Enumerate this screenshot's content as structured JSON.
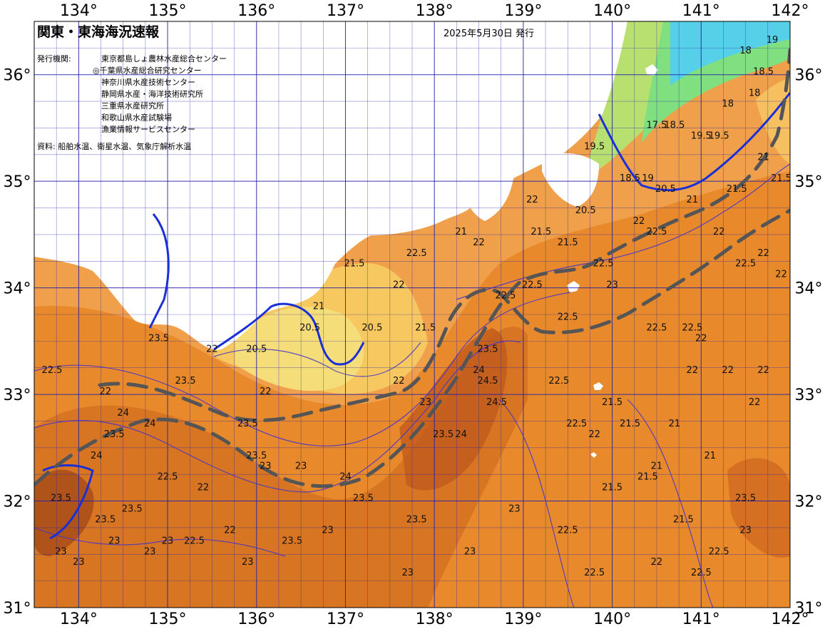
{
  "title": "関東・東海海況速報",
  "issued": "2025年5月30日 発行",
  "agencies_label": "発行機関:",
  "agencies": [
    "東京都島しょ農林水産総合センター",
    "◎千葉県水産総合研究センター",
    "神奈川県水産技術センター",
    "静岡県水産・海洋技術研究所",
    "三重県水産研究所",
    "和歌山県水産試験場",
    "漁業情報サービスセンター"
  ],
  "source": "資料: 船舶水温、衛星水温、気象庁解析水温",
  "lon_ticks": [
    {
      "lon": 134,
      "label": "134°"
    },
    {
      "lon": 135,
      "label": "135°"
    },
    {
      "lon": 136,
      "label": "136°"
    },
    {
      "lon": 137,
      "label": "137°"
    },
    {
      "lon": 138,
      "label": "138°"
    },
    {
      "lon": 139,
      "label": "139°"
    },
    {
      "lon": 140,
      "label": "140°"
    },
    {
      "lon": 141,
      "label": "141°"
    },
    {
      "lon": 142,
      "label": "142°"
    }
  ],
  "lat_ticks": [
    {
      "lat": 31,
      "label": "31°"
    },
    {
      "lat": 32,
      "label": "32°"
    },
    {
      "lat": 33,
      "label": "33°"
    },
    {
      "lat": 34,
      "label": "34°"
    },
    {
      "lat": 35,
      "label": "35°"
    },
    {
      "lat": 36,
      "label": "36°"
    }
  ],
  "extent": {
    "lon_min": 133.5,
    "lon_max": 142,
    "lat_min": 31,
    "lat_max": 36.5
  },
  "colors": {
    "land": "#ffffff",
    "sea_warm": "#e8892c",
    "sea_hot": "#c55f1a",
    "sea_mid": "#f4a640",
    "sea_cool": "#f9d36e",
    "sea_cold": "#a8e06a",
    "sea_colder": "#5fe0c8",
    "sea_coldest": "#3fc8f0",
    "grid": "#2222aa",
    "isotherm": "#4433cc",
    "front": "#555555"
  },
  "isotherm_labels": [
    {
      "lon": 133.7,
      "lat": 33.2,
      "label": "22.5"
    },
    {
      "lon": 134.3,
      "lat": 33.0,
      "label": "22"
    },
    {
      "lon": 134.4,
      "lat": 32.6,
      "label": "23.5"
    },
    {
      "lon": 134.5,
      "lat": 32.8,
      "label": "24"
    },
    {
      "lon": 134.8,
      "lat": 32.7,
      "label": "24"
    },
    {
      "lon": 134.2,
      "lat": 32.4,
      "label": "24"
    },
    {
      "lon": 134.9,
      "lat": 33.5,
      "label": "23.5"
    },
    {
      "lon": 135.2,
      "lat": 33.1,
      "label": "23.5"
    },
    {
      "lon": 135.5,
      "lat": 33.4,
      "label": "22"
    },
    {
      "lon": 135.9,
      "lat": 32.7,
      "label": "23.5"
    },
    {
      "lon": 136.0,
      "lat": 32.4,
      "label": "23.5"
    },
    {
      "lon": 136.1,
      "lat": 32.3,
      "label": "23"
    },
    {
      "lon": 136.1,
      "lat": 33.0,
      "label": "22"
    },
    {
      "lon": 136.0,
      "lat": 33.4,
      "label": "20.5"
    },
    {
      "lon": 136.6,
      "lat": 33.6,
      "label": "20.5"
    },
    {
      "lon": 136.7,
      "lat": 33.8,
      "label": "21"
    },
    {
      "lon": 137.1,
      "lat": 34.2,
      "label": "21.5"
    },
    {
      "lon": 137.3,
      "lat": 33.6,
      "label": "20.5"
    },
    {
      "lon": 137.6,
      "lat": 33.1,
      "label": "22"
    },
    {
      "lon": 137.6,
      "lat": 34.0,
      "label": "22"
    },
    {
      "lon": 137.8,
      "lat": 34.3,
      "label": "22.5"
    },
    {
      "lon": 137.9,
      "lat": 33.6,
      "label": "21.5"
    },
    {
      "lon": 137.9,
      "lat": 32.9,
      "label": "23"
    },
    {
      "lon": 138.1,
      "lat": 32.6,
      "label": "23.5"
    },
    {
      "lon": 138.3,
      "lat": 32.6,
      "label": "24"
    },
    {
      "lon": 138.5,
      "lat": 33.2,
      "label": "24"
    },
    {
      "lon": 138.6,
      "lat": 33.4,
      "label": "23.5"
    },
    {
      "lon": 138.6,
      "lat": 33.1,
      "label": "24.5"
    },
    {
      "lon": 138.5,
      "lat": 34.4,
      "label": "22"
    },
    {
      "lon": 138.7,
      "lat": 32.9,
      "label": "24.5"
    },
    {
      "lon": 138.8,
      "lat": 33.9,
      "label": "22.5"
    },
    {
      "lon": 138.3,
      "lat": 34.5,
      "label": "21"
    },
    {
      "lon": 137.0,
      "lat": 32.2,
      "label": "24"
    },
    {
      "lon": 137.2,
      "lat": 32.0,
      "label": "23.5"
    },
    {
      "lon": 136.8,
      "lat": 31.7,
      "label": "23"
    },
    {
      "lon": 136.4,
      "lat": 31.6,
      "label": "23.5"
    },
    {
      "lon": 136.5,
      "lat": 32.3,
      "label": "23"
    },
    {
      "lon": 137.8,
      "lat": 31.8,
      "label": "23.5"
    },
    {
      "lon": 137.7,
      "lat": 31.3,
      "label": "23"
    },
    {
      "lon": 138.4,
      "lat": 31.5,
      "label": "23"
    },
    {
      "lon": 138.9,
      "lat": 31.9,
      "label": "23"
    },
    {
      "lon": 139.1,
      "lat": 34.8,
      "label": "22"
    },
    {
      "lon": 139.2,
      "lat": 34.5,
      "label": "21.5"
    },
    {
      "lon": 139.1,
      "lat": 34.0,
      "label": "22.5"
    },
    {
      "lon": 139.5,
      "lat": 33.7,
      "label": "22.5"
    },
    {
      "lon": 139.5,
      "lat": 34.4,
      "label": "21.5"
    },
    {
      "lon": 139.7,
      "lat": 34.7,
      "label": "20.5"
    },
    {
      "lon": 139.9,
      "lat": 34.2,
      "label": "22.5"
    },
    {
      "lon": 140.0,
      "lat": 34.0,
      "label": "23"
    },
    {
      "lon": 139.4,
      "lat": 33.1,
      "label": "22.5"
    },
    {
      "lon": 139.6,
      "lat": 32.7,
      "label": "22.5"
    },
    {
      "lon": 139.8,
      "lat": 32.6,
      "label": "22"
    },
    {
      "lon": 140.0,
      "lat": 32.9,
      "label": "21.5"
    },
    {
      "lon": 140.2,
      "lat": 32.7,
      "label": "21.5"
    },
    {
      "lon": 140.5,
      "lat": 32.3,
      "label": "21"
    },
    {
      "lon": 140.5,
      "lat": 33.6,
      "label": "22.5"
    },
    {
      "lon": 140.9,
      "lat": 33.6,
      "label": "22.5"
    },
    {
      "lon": 141.0,
      "lat": 33.5,
      "label": "22"
    },
    {
      "lon": 140.9,
      "lat": 33.2,
      "label": "22"
    },
    {
      "lon": 141.3,
      "lat": 33.2,
      "label": "22"
    },
    {
      "lon": 141.2,
      "lat": 34.5,
      "label": "22"
    },
    {
      "lon": 141.5,
      "lat": 34.2,
      "label": "22.5"
    },
    {
      "lon": 141.7,
      "lat": 34.3,
      "label": "22"
    },
    {
      "lon": 141.9,
      "lat": 34.1,
      "label": "22"
    },
    {
      "lon": 140.3,
      "lat": 34.6,
      "label": "22"
    },
    {
      "lon": 140.5,
      "lat": 34.5,
      "label": "22.5"
    },
    {
      "lon": 140.9,
      "lat": 34.8,
      "label": "21"
    },
    {
      "lon": 141.4,
      "lat": 34.9,
      "label": "21.5"
    },
    {
      "lon": 141.7,
      "lat": 33.2,
      "label": "22"
    },
    {
      "lon": 141.6,
      "lat": 32.9,
      "label": "22"
    },
    {
      "lon": 141.1,
      "lat": 32.4,
      "label": "21"
    },
    {
      "lon": 140.7,
      "lat": 32.7,
      "label": "21"
    },
    {
      "lon": 140.4,
      "lat": 32.2,
      "label": "21.5"
    },
    {
      "lon": 140.0,
      "lat": 32.1,
      "label": "21.5"
    },
    {
      "lon": 141.5,
      "lat": 32.0,
      "label": "23.5"
    },
    {
      "lon": 141.5,
      "lat": 31.7,
      "label": "23"
    },
    {
      "lon": 141.0,
      "lat": 31.3,
      "label": "22.5"
    },
    {
      "lon": 141.2,
      "lat": 31.5,
      "label": "22.5"
    },
    {
      "lon": 140.5,
      "lat": 31.4,
      "label": "22"
    },
    {
      "lon": 140.8,
      "lat": 31.8,
      "label": "21.5"
    },
    {
      "lon": 139.5,
      "lat": 31.7,
      "label": "22.5"
    },
    {
      "lon": 139.8,
      "lat": 31.3,
      "label": "22.5"
    },
    {
      "lon": 134.3,
      "lat": 31.8,
      "label": "23.5"
    },
    {
      "lon": 134.6,
      "lat": 31.9,
      "label": "23.5"
    },
    {
      "lon": 134.4,
      "lat": 31.6,
      "label": "23"
    },
    {
      "lon": 134.8,
      "lat": 31.5,
      "label": "23"
    },
    {
      "lon": 135.0,
      "lat": 31.6,
      "label": "23"
    },
    {
      "lon": 135.3,
      "lat": 31.6,
      "label": "22.5"
    },
    {
      "lon": 135.0,
      "lat": 32.2,
      "label": "22.5"
    },
    {
      "lon": 135.4,
      "lat": 32.1,
      "label": "22"
    },
    {
      "lon": 135.7,
      "lat": 31.7,
      "label": "22"
    },
    {
      "lon": 135.9,
      "lat": 31.4,
      "label": "23"
    },
    {
      "lon": 133.8,
      "lat": 31.5,
      "label": "23"
    },
    {
      "lon": 134.0,
      "lat": 31.4,
      "label": "23"
    },
    {
      "lon": 133.8,
      "lat": 32.0,
      "label": "23.5"
    },
    {
      "lon": 139.8,
      "lat": 35.3,
      "label": "19.5"
    },
    {
      "lon": 140.2,
      "lat": 35.0,
      "label": "18.5"
    },
    {
      "lon": 140.4,
      "lat": 35.0,
      "label": "19"
    },
    {
      "lon": 140.6,
      "lat": 34.9,
      "label": "20.5"
    },
    {
      "lon": 140.5,
      "lat": 35.5,
      "label": "17.5"
    },
    {
      "lon": 140.7,
      "lat": 35.5,
      "label": "18.5"
    },
    {
      "lon": 141.0,
      "lat": 35.4,
      "label": "19.5"
    },
    {
      "lon": 141.3,
      "lat": 35.7,
      "label": "18"
    },
    {
      "lon": 141.2,
      "lat": 35.4,
      "label": "19.5"
    },
    {
      "lon": 141.6,
      "lat": 35.8,
      "label": "18"
    },
    {
      "lon": 141.7,
      "lat": 36.0,
      "label": "18.5"
    },
    {
      "lon": 141.8,
      "lat": 36.3,
      "label": "19"
    },
    {
      "lon": 141.5,
      "lat": 36.2,
      "label": "18"
    },
    {
      "lon": 141.9,
      "lat": 35.0,
      "label": "21.5"
    },
    {
      "lon": 141.7,
      "lat": 35.2,
      "label": "21"
    }
  ]
}
